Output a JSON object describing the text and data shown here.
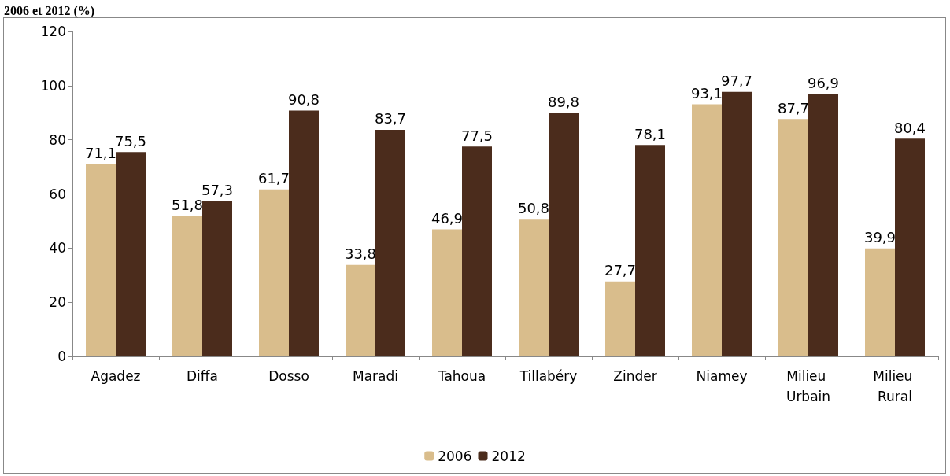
{
  "chart_data": {
    "type": "bar",
    "title": "2006 et 2012 (%)",
    "categories": [
      "Agadez",
      "Diffa",
      "Dosso",
      "Maradi",
      "Tahoua",
      "Tillabéry",
      "Zinder",
      "Niamey",
      "Milieu Urbain",
      "Milieu Rural"
    ],
    "series": [
      {
        "name": "2006",
        "color": "#d9bd8c",
        "values": [
          71.1,
          51.8,
          61.7,
          33.8,
          46.9,
          50.8,
          27.7,
          93.1,
          87.7,
          39.9
        ],
        "value_labels": [
          "71,1",
          "51,8",
          "61,7",
          "33,8",
          "46,9",
          "50,8",
          "27,7",
          "93,1",
          "87,7",
          "39,9"
        ]
      },
      {
        "name": "2012",
        "color": "#4b2c1c",
        "values": [
          75.5,
          57.3,
          90.8,
          83.7,
          77.5,
          89.8,
          78.1,
          97.7,
          96.9,
          80.4
        ],
        "value_labels": [
          "75,5",
          "57,3",
          "90,8",
          "83,7",
          "77,5",
          "89,8",
          "78,1",
          "97,7",
          "96,9",
          "80,4"
        ]
      }
    ],
    "ylim": [
      0,
      120
    ],
    "yticks": [
      0,
      20,
      40,
      60,
      80,
      100,
      120
    ],
    "grid": false,
    "legend": "bottom"
  }
}
